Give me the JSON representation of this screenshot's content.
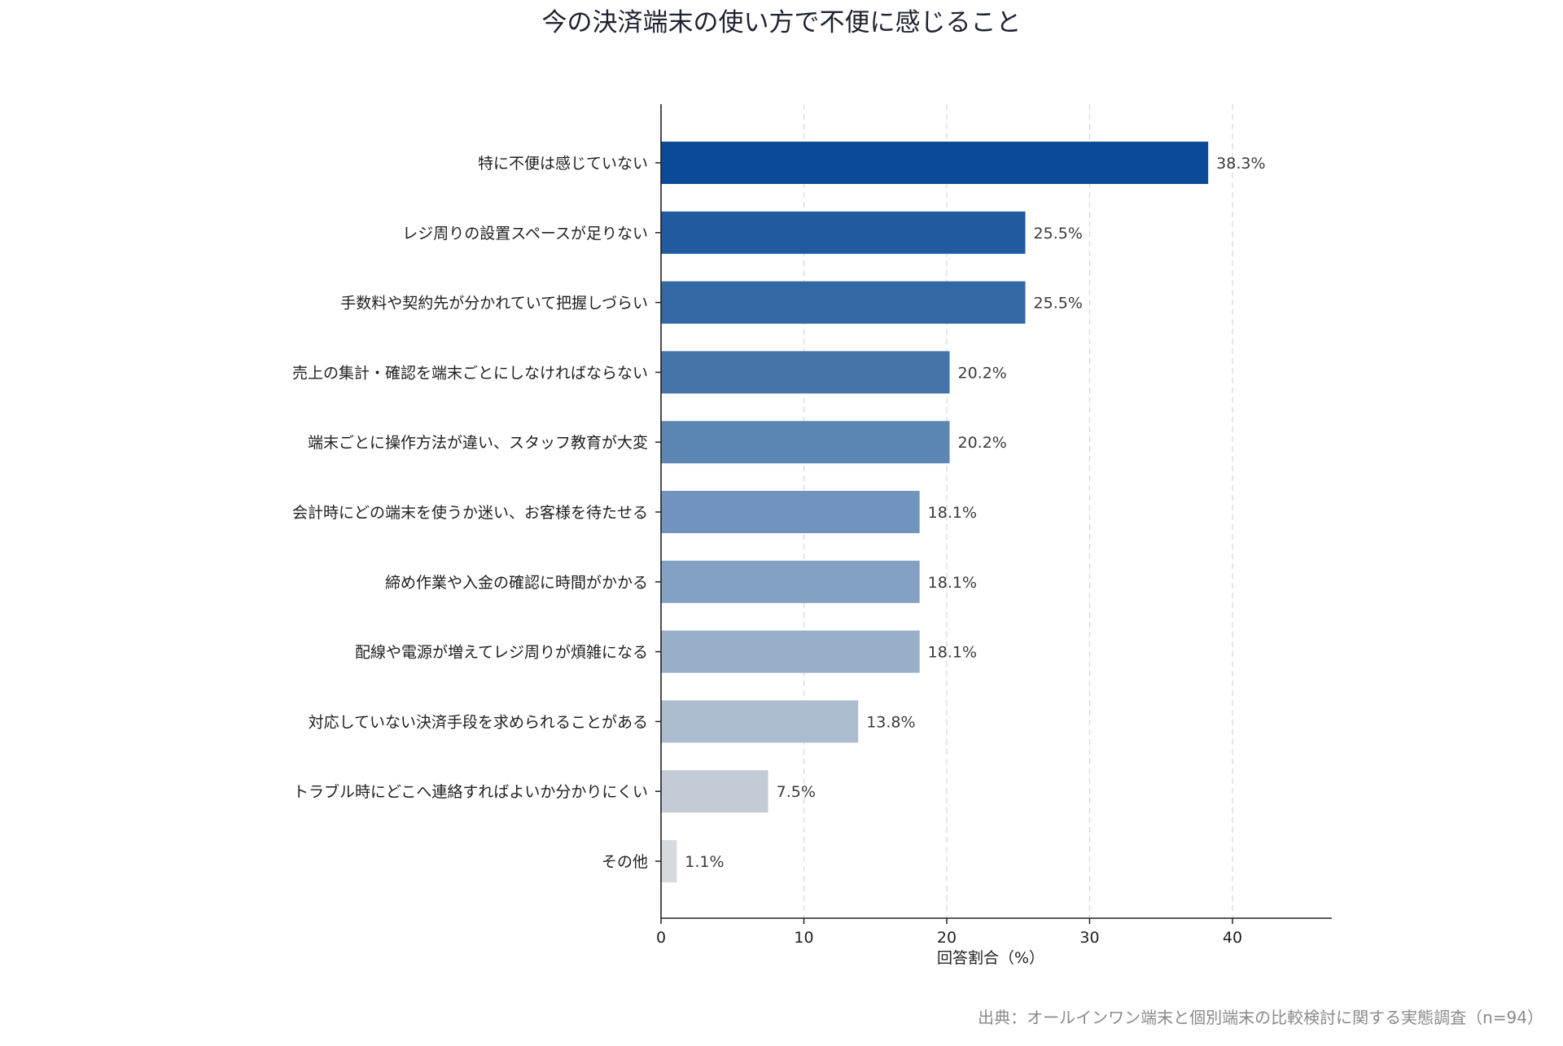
{
  "chart_data": {
    "type": "bar",
    "orientation": "horizontal",
    "title": "今の決済端末の使い方で不便に感じること",
    "xlabel": "回答割合（%）",
    "ylabel": "",
    "xlim": [
      0,
      46.5
    ],
    "xticks": [
      "0",
      "10",
      "20",
      "30",
      "40"
    ],
    "grid": "vertical dashed",
    "categories": [
      "特に不便は感じていない",
      "レジ周りの設置スペースが足りない",
      "手数料や契約先が分かれていて把握しづらい",
      "売上の集計・確認を端末ごとにしなければならない",
      "端末ごとに操作方法が違い、スタッフ教育が大変",
      "会計時にどの端末を使うか迷い、お客様を待たせる",
      "締め作業や入金の確認に時間がかかる",
      "配線や電源が増えてレジ周りが煩雑になる",
      "対応していない決済手段を求められることがある",
      "トラブル時にどこへ連絡すればよいか分かりにくい",
      "その他"
    ],
    "values": [
      38.3,
      25.5,
      25.5,
      20.2,
      20.2,
      18.1,
      18.1,
      18.1,
      13.8,
      7.5,
      1.1
    ],
    "value_labels": [
      "38.3%",
      "25.5%",
      "25.5%",
      "20.2%",
      "20.2%",
      "18.1%",
      "18.1%",
      "18.1%",
      "13.8%",
      "7.5%",
      "1.1%"
    ],
    "colors": [
      "#0b4a96",
      "#1f5b9e",
      "#3468a4",
      "#4474aa",
      "#5b86b4",
      "#7194be",
      "#83a1c2",
      "#98afc8",
      "#acbccf",
      "#c3ccd6",
      "#d6dade"
    ],
    "source": "出典：オールインワン端末と個別端末の比較検討に関する実態調査（n=94）"
  }
}
